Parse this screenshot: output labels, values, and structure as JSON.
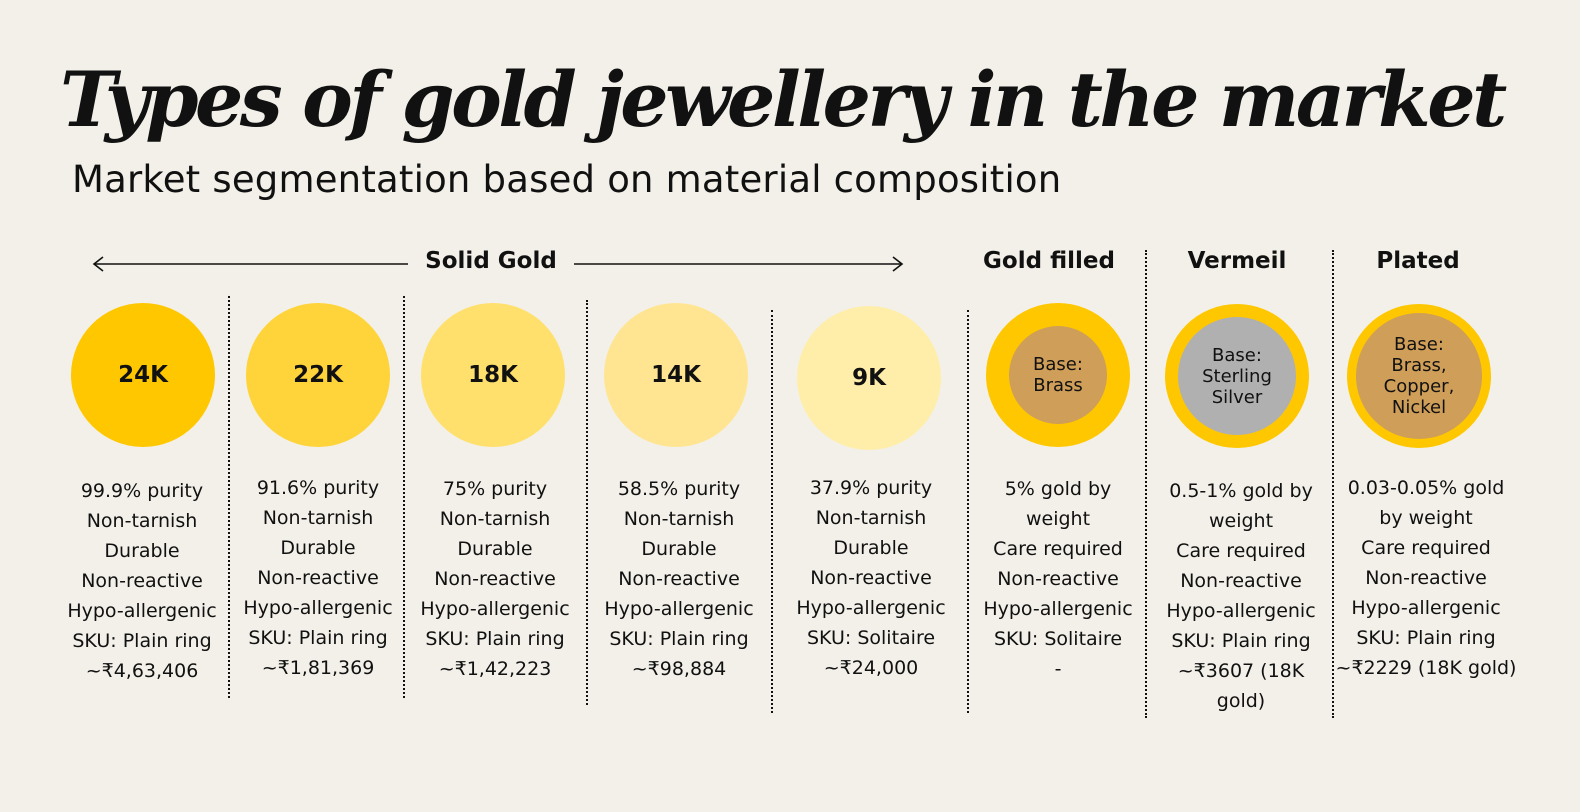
{
  "title": "Types of gold jewellery in the market",
  "subtitle": "Market segmentation based on material composition",
  "groups": {
    "solid_gold": "Solid Gold",
    "gold_filled": "Gold filled",
    "vermeil": "Vermeil",
    "plated": "Plated"
  },
  "colors": {
    "background": "#f2f0e8",
    "gold_24k": "#ffc700",
    "gold_22k": "#ffd43a",
    "gold_18k": "#ffe06c",
    "gold_14k": "#ffe592",
    "gold_9k": "#ffeeaa",
    "brass_base": "#cf9e58",
    "silver_base": "#b0b0b0",
    "ring": "#ffc700"
  },
  "items": [
    {
      "label": "24K",
      "lines": [
        "99.9% purity",
        "Non-tarnish",
        "Durable",
        "Non-reactive",
        "Hypo-allergenic"
      ],
      "sku": "SKU: Plain ring",
      "price": "~₹4,63,406"
    },
    {
      "label": "22K",
      "lines": [
        "91.6% purity",
        "Non-tarnish",
        "Durable",
        "Non-reactive",
        "Hypo-allergenic"
      ],
      "sku": "SKU: Plain ring",
      "price": "~₹1,81,369"
    },
    {
      "label": "18K",
      "lines": [
        "75% purity",
        "Non-tarnish",
        "Durable",
        "Non-reactive",
        "Hypo-allergenic"
      ],
      "sku": "SKU: Plain ring",
      "price": "~₹1,42,223"
    },
    {
      "label": "14K",
      "lines": [
        "58.5% purity",
        "Non-tarnish",
        "Durable",
        "Non-reactive",
        "Hypo-allergenic"
      ],
      "sku": "SKU: Plain ring",
      "price": "~₹98,884"
    },
    {
      "label": "9K",
      "lines": [
        "37.9% purity",
        "Non-tarnish",
        "Durable",
        "Non-reactive",
        "Hypo-allergenic"
      ],
      "sku": "SKU: Solitaire",
      "price": "~₹24,000"
    },
    {
      "label": "Base:\nBrass",
      "lines": [
        "5% gold by",
        "weight",
        "Care required",
        "Non-reactive",
        "Hypo-allergenic"
      ],
      "sku": "SKU: Solitaire",
      "price": "-"
    },
    {
      "label": "Base:\nSterling\nSilver",
      "lines": [
        "0.5-1% gold by",
        "weight",
        "Care required",
        "Non-reactive",
        "Hypo-allergenic"
      ],
      "sku": "SKU: Plain ring",
      "price": "~₹3607 (18K gold)"
    },
    {
      "label": "Base:\nBrass,\nCopper,\nNickel",
      "lines": [
        "0.03-0.05% gold",
        "by weight",
        "Care required",
        "Non-reactive",
        "Hypo-allergenic"
      ],
      "sku": "SKU: Plain ring",
      "price": "~₹2229 (18K gold)"
    }
  ]
}
